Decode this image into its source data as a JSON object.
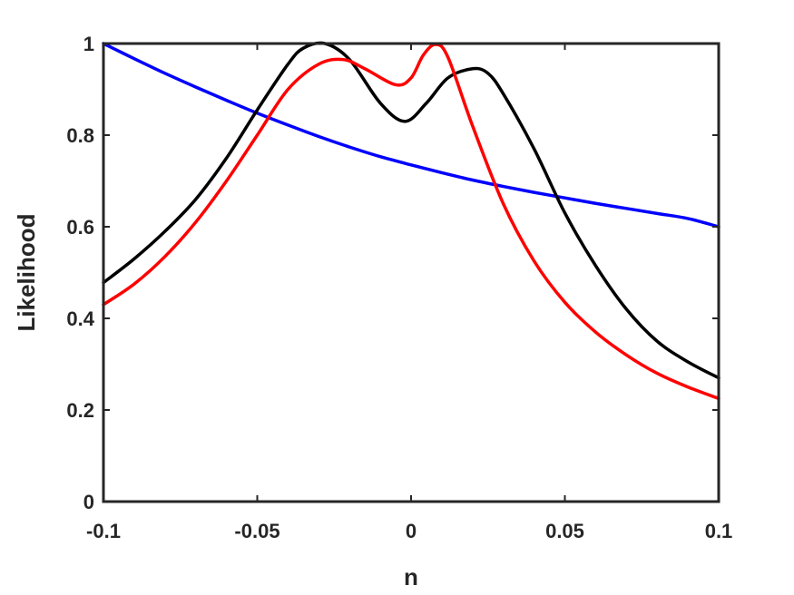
{
  "chart_data": {
    "type": "line",
    "title": "",
    "xlabel": "n",
    "ylabel": "Likelihood",
    "xlim": [
      -0.1,
      0.1
    ],
    "ylim": [
      0,
      1
    ],
    "xticks": [
      -0.1,
      -0.05,
      0,
      0.05,
      0.1
    ],
    "xtick_labels": [
      "-0.1",
      "-0.05",
      "0",
      "0.05",
      "0.1"
    ],
    "yticks": [
      0,
      0.2,
      0.4,
      0.6,
      0.8,
      1
    ],
    "ytick_labels": [
      "0",
      "0.2",
      "0.4",
      "0.6",
      "0.8",
      "1"
    ],
    "grid": false,
    "legend": "none",
    "series": [
      {
        "color": "#0000ff",
        "x": [
          -0.1,
          -0.09,
          -0.08,
          -0.07,
          -0.06,
          -0.05,
          -0.04,
          -0.03,
          -0.02,
          -0.01,
          0,
          0.01,
          0.02,
          0.03,
          0.04,
          0.05,
          0.06,
          0.07,
          0.08,
          0.09,
          0.1
        ],
        "y": [
          1.0,
          0.967,
          0.935,
          0.905,
          0.876,
          0.848,
          0.822,
          0.797,
          0.774,
          0.753,
          0.735,
          0.718,
          0.702,
          0.688,
          0.675,
          0.663,
          0.651,
          0.64,
          0.629,
          0.618,
          0.6
        ]
      },
      {
        "color": "#000000",
        "x": [
          -0.1,
          -0.09,
          -0.08,
          -0.07,
          -0.06,
          -0.05,
          -0.04,
          -0.035,
          -0.028,
          -0.02,
          -0.01,
          -0.002,
          0.005,
          0.012,
          0.02,
          0.025,
          0.03,
          0.04,
          0.05,
          0.06,
          0.07,
          0.08,
          0.09,
          0.1
        ],
        "y": [
          0.478,
          0.53,
          0.59,
          0.66,
          0.75,
          0.855,
          0.955,
          0.99,
          1.0,
          0.965,
          0.87,
          0.83,
          0.87,
          0.925,
          0.945,
          0.935,
          0.89,
          0.77,
          0.63,
          0.515,
          0.42,
          0.35,
          0.305,
          0.27
        ]
      },
      {
        "color": "#ff0000",
        "x": [
          -0.1,
          -0.09,
          -0.08,
          -0.07,
          -0.06,
          -0.05,
          -0.04,
          -0.03,
          -0.022,
          -0.015,
          -0.005,
          0.0,
          0.004,
          0.008,
          0.012,
          0.02,
          0.03,
          0.04,
          0.05,
          0.06,
          0.07,
          0.08,
          0.09,
          0.1
        ],
        "y": [
          0.43,
          0.475,
          0.535,
          0.61,
          0.7,
          0.8,
          0.9,
          0.955,
          0.965,
          0.945,
          0.91,
          0.925,
          0.975,
          0.998,
          0.97,
          0.82,
          0.65,
          0.525,
          0.435,
          0.37,
          0.32,
          0.28,
          0.25,
          0.225
        ]
      }
    ]
  }
}
